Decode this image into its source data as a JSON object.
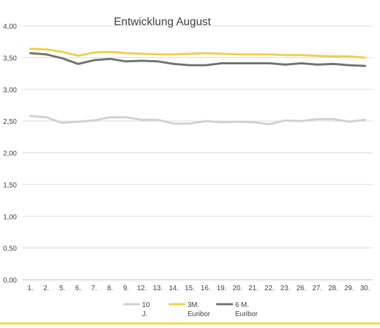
{
  "chart_data": {
    "type": "line",
    "title": "Entwicklung August",
    "xlabel": "",
    "ylabel": "",
    "x": [
      "1.",
      "2.",
      "5.",
      "6.",
      "7.",
      "8.",
      "9.",
      "12.",
      "13.",
      "14.",
      "15.",
      "16.",
      "19.",
      "20.",
      "21.",
      "22.",
      "23.",
      "26.",
      "27.",
      "28.",
      "29.",
      "30."
    ],
    "ylim": [
      0,
      4
    ],
    "yticks": [
      "0,00",
      "0,50",
      "1,00",
      "1,50",
      "2,00",
      "2,50",
      "3,00",
      "3,50",
      "4,00"
    ],
    "grid": true,
    "legend_position": "bottom",
    "series": [
      {
        "name": "10 J.",
        "color": "#d0d0d0",
        "values": [
          2.58,
          2.56,
          2.47,
          2.49,
          2.51,
          2.56,
          2.56,
          2.52,
          2.52,
          2.46,
          2.46,
          2.5,
          2.48,
          2.49,
          2.48,
          2.45,
          2.51,
          2.5,
          2.53,
          2.53,
          2.49,
          2.52
        ]
      },
      {
        "name": "3M. Euribor",
        "color": "#f0cf4b",
        "values": [
          3.64,
          3.63,
          3.59,
          3.53,
          3.58,
          3.59,
          3.57,
          3.56,
          3.55,
          3.55,
          3.56,
          3.57,
          3.56,
          3.55,
          3.55,
          3.55,
          3.54,
          3.54,
          3.53,
          3.52,
          3.52,
          3.5
        ]
      },
      {
        "name": "6 M. Euribor",
        "color": "#707070",
        "values": [
          3.57,
          3.55,
          3.49,
          3.4,
          3.46,
          3.48,
          3.44,
          3.45,
          3.44,
          3.4,
          3.38,
          3.38,
          3.41,
          3.41,
          3.41,
          3.41,
          3.39,
          3.41,
          3.39,
          3.4,
          3.38,
          3.37
        ]
      }
    ]
  },
  "colors": {
    "grid": "#dadada",
    "axis": "#bfbfbf",
    "text": "#404040",
    "title": "#404040",
    "accent_rule": "#f5dc3c"
  }
}
